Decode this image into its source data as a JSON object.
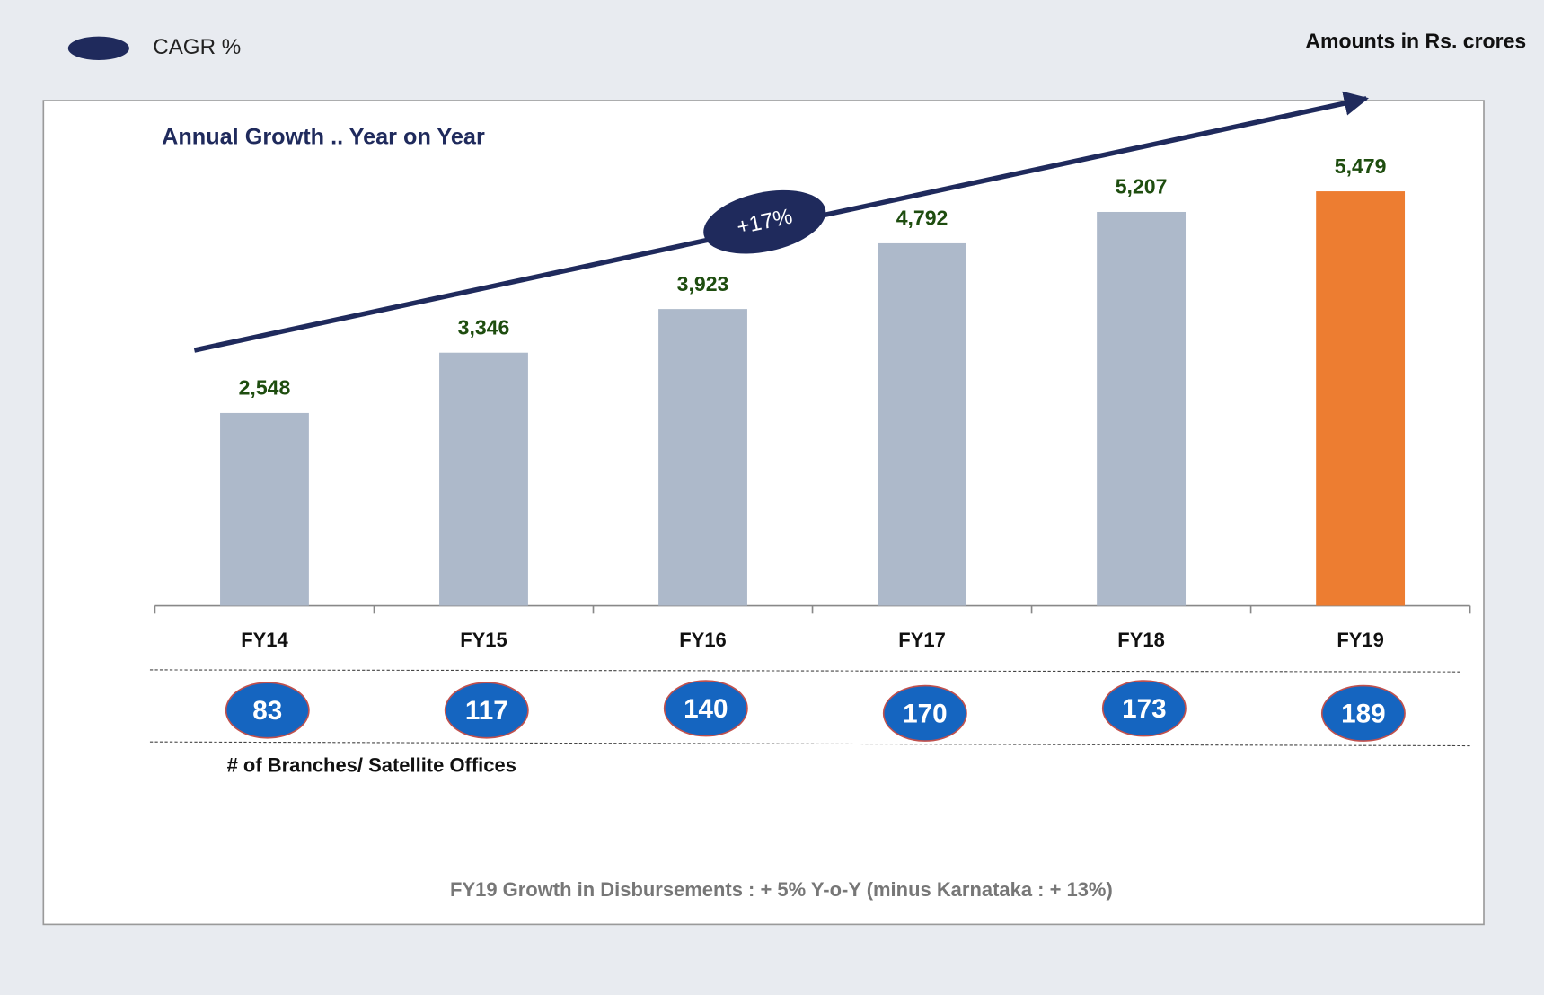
{
  "chart_data": {
    "type": "bar",
    "title": "Annual Growth .. Year on Year",
    "note": "Amounts in Rs. crores",
    "legend": "CAGR %",
    "cagr_label": "+17%",
    "categories": [
      "FY14",
      "FY15",
      "FY16",
      "FY17",
      "FY18",
      "FY19"
    ],
    "values": [
      2548,
      3346,
      3923,
      4792,
      5207,
      5479
    ],
    "value_labels": [
      "2,548",
      "3,346",
      "3,923",
      "4,792",
      "5,207",
      "5,479"
    ],
    "colors": [
      "#adb9ca",
      "#adb9ca",
      "#adb9ca",
      "#adb9ca",
      "#adb9ca",
      "#ed7d31"
    ],
    "ylim": [
      0,
      6000
    ],
    "branches": {
      "label": "# of Branches/ Satellite Offices",
      "values": [
        83,
        117,
        140,
        170,
        173,
        189
      ]
    },
    "footer": "FY19 Growth in Disbursements : + 5% Y-o-Y  (minus Karnataka : + 13%)"
  }
}
